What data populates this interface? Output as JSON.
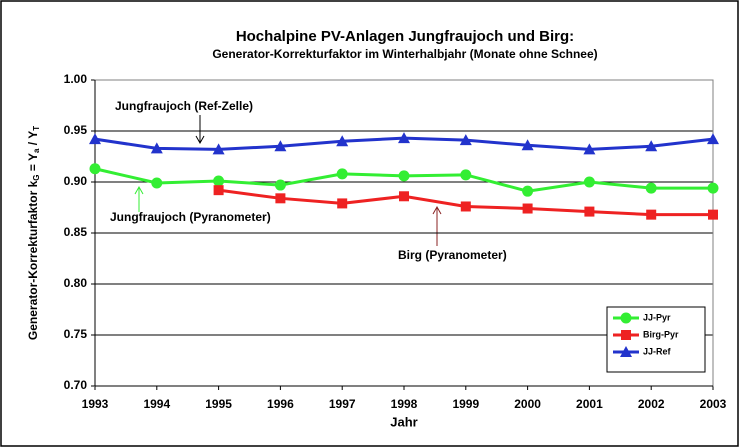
{
  "chart_data": {
    "type": "line",
    "title": "Hochalpine PV-Anlagen Jungfraujoch und Birg:",
    "subtitle": "Generator-Korrekturfaktor im Winterhalbjahr (Monate ohne Schnee)",
    "xlabel": "Jahr",
    "ylabel": [
      "Generator-Korrekturfaktor k",
      "G",
      " = Y",
      "a",
      " / Y",
      "T"
    ],
    "x": [
      1993,
      1994,
      1995,
      1996,
      1997,
      1998,
      1999,
      2000,
      2001,
      2002,
      2003
    ],
    "xlim": [
      1993,
      2003
    ],
    "xticks": [
      1993,
      1994,
      1995,
      1996,
      1997,
      1998,
      1999,
      2000,
      2001,
      2002,
      2003
    ],
    "ylim": [
      0.7,
      1.0
    ],
    "yticks": [
      {
        "value": 0.7,
        "label": "0.70"
      },
      {
        "value": 0.75,
        "label": "0.75"
      },
      {
        "value": 0.8,
        "label": "0.80"
      },
      {
        "value": 0.85,
        "label": "0.85"
      },
      {
        "value": 0.9,
        "label": "0.90"
      },
      {
        "value": 0.95,
        "label": "0.95"
      },
      {
        "value": 1.0,
        "label": "1.00"
      }
    ],
    "grid": true,
    "legend": "lower right",
    "series": [
      {
        "name": "JJ-Pyr",
        "color": "#33ee33",
        "marker": "circle",
        "values": [
          0.913,
          0.899,
          0.901,
          0.897,
          0.908,
          0.906,
          0.907,
          0.891,
          0.9,
          0.894,
          0.894
        ]
      },
      {
        "name": "Birg-Pyr",
        "color": "#ee2222",
        "marker": "square",
        "values": [
          null,
          null,
          0.892,
          0.884,
          0.879,
          0.886,
          0.876,
          0.874,
          0.871,
          0.868,
          0.868
        ]
      },
      {
        "name": "JJ-Ref",
        "color": "#2233cc",
        "marker": "triangle",
        "values": [
          0.942,
          0.933,
          0.932,
          0.935,
          0.94,
          0.943,
          0.941,
          0.936,
          0.932,
          0.935,
          0.942
        ]
      }
    ],
    "annotations": [
      "Jungfraujoch (Ref-Zelle)",
      "Jungfraujoch (Pyranometer)",
      "Birg (Pyranometer)"
    ]
  }
}
